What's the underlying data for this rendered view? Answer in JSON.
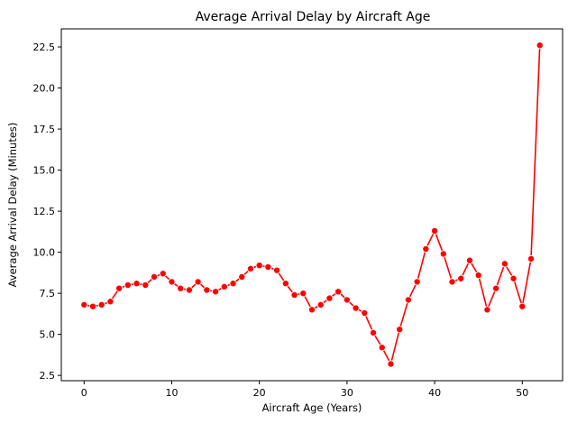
{
  "chart_data": {
    "type": "line",
    "title": "Average Arrival Delay by Aircraft Age",
    "xlabel": "Aircraft Age (Years)",
    "ylabel": "Average Arrival Delay (Minutes)",
    "xlim": [
      -2.6,
      54.6
    ],
    "ylim": [
      2.18,
      23.6
    ],
    "xticks": [
      0,
      10,
      20,
      30,
      40,
      50
    ],
    "xtick_labels": [
      "0",
      "10",
      "20",
      "30",
      "40",
      "50"
    ],
    "yticks": [
      2.5,
      5.0,
      7.5,
      10.0,
      12.5,
      15.0,
      17.5,
      20.0,
      22.5
    ],
    "ytick_labels": [
      "2.5",
      "5.0",
      "7.5",
      "10.0",
      "12.5",
      "15.0",
      "17.5",
      "20.0",
      "22.5"
    ],
    "grid": false,
    "series": [
      {
        "color": "#ff0000",
        "marker": "circle",
        "x": [
          0,
          1,
          2,
          3,
          4,
          5,
          6,
          7,
          8,
          9,
          10,
          11,
          12,
          13,
          14,
          15,
          16,
          17,
          18,
          19,
          20,
          21,
          22,
          23,
          24,
          25,
          26,
          27,
          28,
          29,
          30,
          31,
          32,
          33,
          34,
          35,
          36,
          37,
          38,
          39,
          40,
          41,
          42,
          43,
          44,
          45,
          46,
          47,
          48,
          49,
          50,
          51,
          52
        ],
        "y": [
          6.8,
          6.7,
          6.8,
          7.0,
          7.8,
          8.0,
          8.1,
          8.0,
          8.5,
          8.7,
          8.2,
          7.8,
          7.7,
          8.2,
          7.7,
          7.6,
          7.9,
          8.1,
          8.5,
          9.0,
          9.2,
          9.1,
          8.9,
          8.1,
          7.4,
          7.5,
          6.5,
          6.8,
          7.2,
          7.6,
          7.1,
          6.6,
          6.3,
          5.1,
          4.2,
          3.2,
          5.3,
          7.1,
          8.2,
          10.2,
          11.3,
          9.9,
          8.2,
          8.4,
          9.5,
          8.6,
          6.5,
          7.8,
          9.3,
          8.4,
          6.7,
          9.6,
          22.6
        ]
      }
    ]
  }
}
